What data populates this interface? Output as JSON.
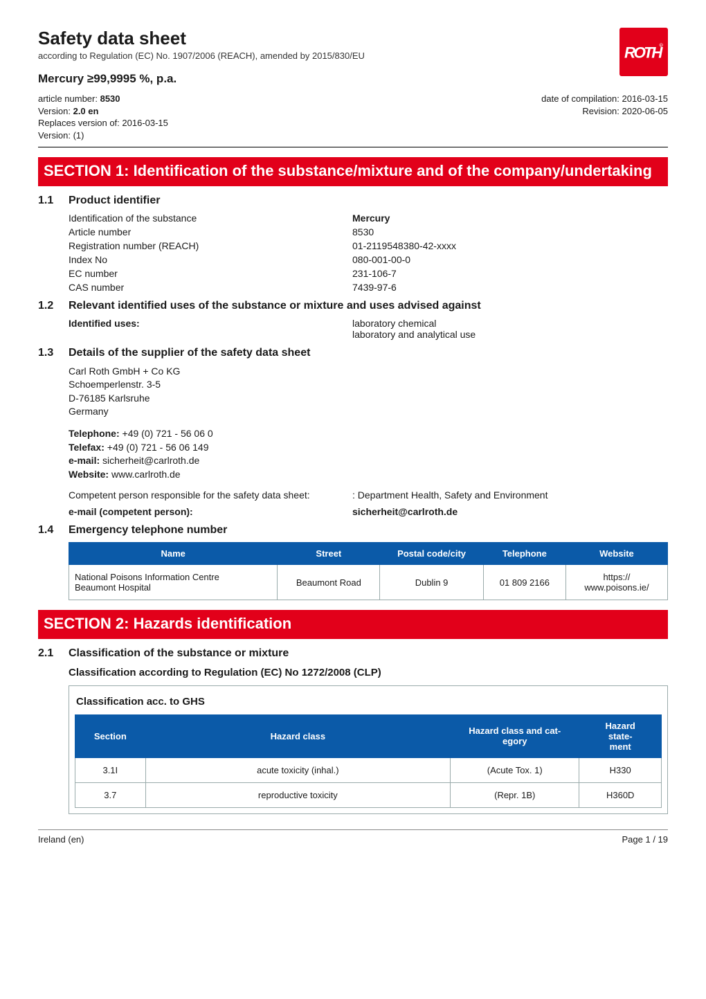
{
  "header": {
    "title": "Safety data sheet",
    "subtitle": "according to Regulation (EC) No. 1907/2006 (REACH), amended by 2015/830/EU",
    "product": "Mercury  ≥99,9995 %, p.a.",
    "article_line": "article number: ",
    "article_number": "8530",
    "version_line": "Version: ",
    "version": "2.0 en",
    "replaces": "Replaces version of: 2016-03-15",
    "replaces_ver": "Version: (1)",
    "compiled": "date of compilation: 2016-03-15",
    "revision": "Revision: 2020-06-05"
  },
  "sec1": {
    "title": "SECTION 1: Identification of the substance/mixture and of the company/undertaking",
    "s11_num": "1.1",
    "s11_title": "Product identifier",
    "rows": [
      {
        "k": "Identification of the substance",
        "v": "Mercury",
        "vb": true
      },
      {
        "k": "Article number",
        "v": "8530"
      },
      {
        "k": "Registration number (REACH)",
        "v": "01-2119548380-42-xxxx"
      },
      {
        "k": "Index No",
        "v": "080-001-00-0"
      },
      {
        "k": "EC number",
        "v": "231-106-7"
      },
      {
        "k": "CAS number",
        "v": "7439-97-6"
      }
    ],
    "s12_num": "1.2",
    "s12_title": "Relevant identified uses of the substance or mixture and uses advised against",
    "s12_k": "Identified uses:",
    "s12_v1": "laboratory chemical",
    "s12_v2": "laboratory and analytical use",
    "s13_num": "1.3",
    "s13_title": "Details of the supplier of the safety data sheet",
    "s13_addr1": "Carl Roth GmbH + Co KG",
    "s13_addr2": "Schoemperlenstr. 3-5",
    "s13_addr3": "D-76185 Karlsruhe",
    "s13_addr4": "Germany",
    "s13_tel_k": "Telephone:",
    "s13_tel_v": " +49 (0) 721 - 56 06 0",
    "s13_fax_k": "Telefax:",
    "s13_fax_v": " +49 (0) 721 - 56 06 149",
    "s13_em_k": "e-mail:",
    "s13_em_v": " sicherheit@carlroth.de",
    "s13_web_k": "Website:",
    "s13_web_v": " www.carlroth.de",
    "s13_comp_k": "Competent person responsible for the safety data sheet:",
    "s13_comp_v": ": Department Health, Safety and Environment",
    "s13_emc_k": "e-mail (competent person):",
    "s13_emc_v": "sicherheit@carlroth.de",
    "s14_num": "1.4",
    "s14_title": "Emergency telephone number",
    "s14_headers": [
      "Name",
      "Street",
      "Postal code/city",
      "Telephone",
      "Website"
    ],
    "s14_row": [
      "National Poisons Information Centre\nBeaumont Hospital",
      "Beaumont Road",
      "Dublin 9",
      "01 809 2166",
      "https://\nwww.poisons.ie/"
    ]
  },
  "sec2": {
    "title": "SECTION 2: Hazards identification",
    "s21_num": "2.1",
    "s21_title": "Classification of the substance or mixture",
    "s21_sub": "Classification according to Regulation (EC) No 1272/2008 (CLP)",
    "caption": "Classification acc. to GHS",
    "headers": [
      "Section",
      "Hazard class",
      "Hazard class and category",
      "Hazard statement"
    ],
    "widths": [
      "12%",
      "52%",
      "22%",
      "14%"
    ],
    "rows": [
      [
        "3.1I",
        "acute toxicity (inhal.)",
        "(Acute Tox. 1)",
        "H330"
      ],
      [
        "3.7",
        "reproductive toxicity",
        "(Repr. 1B)",
        "H360D"
      ]
    ]
  },
  "footer": {
    "left": "Ireland (en)",
    "right": "Page 1 / 19"
  }
}
